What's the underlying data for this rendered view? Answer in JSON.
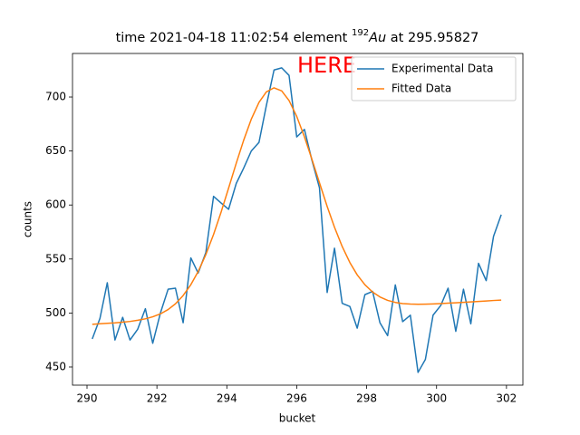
{
  "chart_data": {
    "type": "line",
    "title": {
      "prefix": "time 2021-04-18 11:02:54 element ",
      "isotope": "192",
      "element": "Au",
      "suffix": " at 295.95827"
    },
    "annotation": "HERE",
    "annotation_color": "#ff0000",
    "x_label": "bucket",
    "y_label": "counts",
    "xlim": [
      289.585,
      302.47
    ],
    "ylim": [
      433.2,
      740.3
    ],
    "xticks": [
      290,
      292,
      294,
      296,
      298,
      300,
      302
    ],
    "yticks": [
      450,
      500,
      550,
      600,
      650,
      700
    ],
    "legend": "upper right",
    "x": [
      290.15,
      290.37,
      290.58,
      290.8,
      291.02,
      291.23,
      291.45,
      291.67,
      291.88,
      292.1,
      292.32,
      292.53,
      292.75,
      292.97,
      293.18,
      293.4,
      293.62,
      293.83,
      294.05,
      294.27,
      294.48,
      294.7,
      294.92,
      295.13,
      295.35,
      295.57,
      295.78,
      296.0,
      296.22,
      296.43,
      296.65,
      296.87,
      297.08,
      297.3,
      297.52,
      297.73,
      297.95,
      298.17,
      298.38,
      298.6,
      298.82,
      299.03,
      299.25,
      299.47,
      299.68,
      299.9,
      300.12,
      300.33,
      300.55,
      300.77,
      300.98,
      301.2,
      301.42,
      301.63,
      301.85
    ],
    "series": [
      {
        "name": "Experimental Data",
        "color": "#1f77b4",
        "values": [
          476,
          495,
          528,
          475,
          496,
          475,
          485,
          504,
          472,
          500,
          522,
          523,
          491,
          551,
          537,
          556,
          608,
          602,
          596,
          620,
          634,
          650,
          658,
          692,
          725,
          727,
          720,
          663,
          670,
          642,
          616,
          519,
          560,
          509,
          506,
          486,
          517,
          520,
          491,
          479,
          526,
          492,
          498,
          445,
          457,
          498,
          507,
          523,
          483,
          522,
          490,
          546,
          530,
          571,
          591
        ]
      },
      {
        "name": "Fitted Data",
        "color": "#ff7f0e",
        "values": [
          489.5,
          490.0,
          490.5,
          490.9,
          491.5,
          492.2,
          493.3,
          494.6,
          496.5,
          499.2,
          503.2,
          508.5,
          516.2,
          526.2,
          538.4,
          554.1,
          572.7,
          592.8,
          615.6,
          638.7,
          659.8,
          679.5,
          695.0,
          704.7,
          708.5,
          705.6,
          696.7,
          682.0,
          663.1,
          642.8,
          620.6,
          598.7,
          579.4,
          561.6,
          546.7,
          535.3,
          526.2,
          519.4,
          514.9,
          511.7,
          509.8,
          508.7,
          508.3,
          508.1,
          508.2,
          508.4,
          508.7,
          509.1,
          509.5,
          509.9,
          510.3,
          510.7,
          511.1,
          511.6,
          512.0
        ]
      }
    ]
  }
}
